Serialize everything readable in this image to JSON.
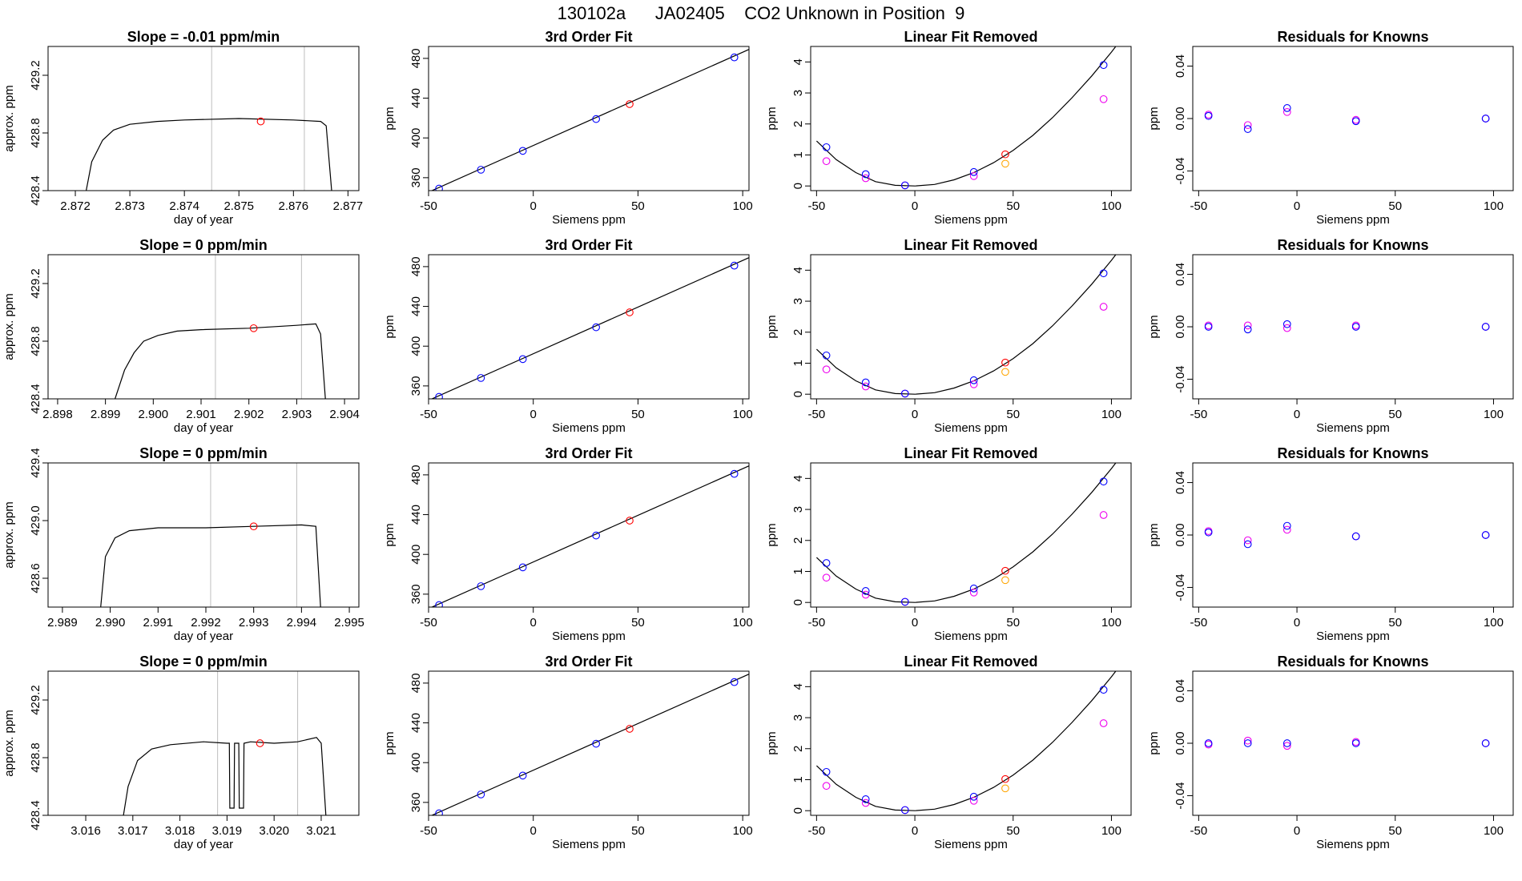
{
  "page": {
    "title": "130102a      JA02405    CO2 Unknown in Position  9"
  },
  "colors": {
    "frame": "#000000",
    "trace": "#000000",
    "vline": "#bebebe",
    "blue": "#0000ff",
    "red": "#ff0000",
    "purple": "#a020f0",
    "magenta": "#ee00ee",
    "orange": "#ffa500"
  },
  "chart_data": [
    {
      "type": "line",
      "row": 0,
      "col": 0,
      "title": "Slope =  -0.01  ppm/min",
      "xlabel": "day of year",
      "ylabel": "approx. ppm",
      "xlim": [
        2.8715,
        2.8772
      ],
      "ylim": [
        428.4,
        429.4
      ],
      "xticks": [
        "2.872",
        "2.873",
        "2.874",
        "2.875",
        "2.876",
        "2.877"
      ],
      "yticks": [
        "428.4",
        "428.8",
        "429.2"
      ],
      "trace": {
        "x": [
          2.8722,
          2.8723,
          2.8725,
          2.8727,
          2.873,
          2.8735,
          2.874,
          2.875,
          2.876,
          2.8765,
          2.8766,
          2.8767
        ],
        "y": [
          428.4,
          428.6,
          428.75,
          428.82,
          428.86,
          428.88,
          428.89,
          428.9,
          428.89,
          428.88,
          428.85,
          428.4
        ]
      },
      "vlines": [
        2.8745,
        2.8762
      ],
      "marker": {
        "x": 2.8754,
        "y": 428.88
      }
    },
    {
      "type": "scatter",
      "row": 0,
      "col": 1,
      "title": "3rd Order Fit",
      "xlabel": "Siemens ppm",
      "ylabel": "ppm",
      "xlim": [
        -50,
        103
      ],
      "ylim": [
        347,
        492
      ],
      "xticks": [
        "-50",
        "0",
        "50",
        "100"
      ],
      "yticks": [
        "360",
        "400",
        "440",
        "480"
      ],
      "fit_line": {
        "x": [
          -50,
          103
        ],
        "y": [
          345.5,
          489
        ]
      },
      "points_blue": {
        "x": [
          -45,
          -25,
          -5,
          30,
          96
        ],
        "y": [
          349,
          368,
          387,
          419,
          481
        ]
      },
      "points_red": {
        "x": [
          46
        ],
        "y": [
          434
        ]
      }
    },
    {
      "type": "scatter",
      "row": 0,
      "col": 2,
      "title": "Linear Fit Removed",
      "xlabel": "Siemens ppm",
      "ylabel": "ppm",
      "xlim": [
        -53,
        110
      ],
      "ylim": [
        -0.15,
        4.5
      ],
      "xticks": [
        "-50",
        "0",
        "50",
        "100"
      ],
      "yticks": [
        "0",
        "1",
        "2",
        "3",
        "4"
      ],
      "curve": {
        "x": [
          -50,
          -40,
          -30,
          -20,
          -10,
          0,
          10,
          20,
          30,
          40,
          50,
          60,
          70,
          80,
          90,
          100,
          104
        ],
        "y": [
          1.45,
          0.85,
          0.43,
          0.14,
          0.02,
          0.0,
          0.05,
          0.2,
          0.43,
          0.75,
          1.15,
          1.63,
          2.2,
          2.85,
          3.55,
          4.32,
          4.65
        ]
      },
      "points_blue": {
        "x": [
          -45,
          -25,
          -5,
          30,
          96
        ],
        "y": [
          1.25,
          0.38,
          0.02,
          0.45,
          3.9
        ]
      },
      "points_magenta": {
        "x": [
          -45,
          -25,
          -5,
          30,
          96
        ],
        "y": [
          0.8,
          0.25,
          0.02,
          0.32,
          2.8
        ]
      },
      "points_red": {
        "x": [
          46
        ],
        "y": [
          1.02
        ]
      },
      "points_orange": {
        "x": [
          46
        ],
        "y": [
          0.72
        ]
      }
    },
    {
      "type": "scatter",
      "row": 0,
      "col": 3,
      "title": "Residuals for Knowns",
      "xlabel": "Siemens ppm",
      "ylabel": "ppm",
      "xlim": [
        -53,
        110
      ],
      "ylim": [
        -0.055,
        0.055
      ],
      "xticks": [
        "-50",
        "0",
        "50",
        "100"
      ],
      "yticks": [
        "-0.04",
        "0.00",
        "0.04"
      ],
      "points_blue": {
        "x": [
          -45,
          -25,
          -5,
          30,
          96
        ],
        "y": [
          0.002,
          -0.008,
          0.008,
          -0.002,
          0.0
        ]
      },
      "points_magenta": {
        "x": [
          -45,
          -25,
          -5,
          30,
          96
        ],
        "y": [
          0.003,
          -0.005,
          0.005,
          -0.001,
          0.0
        ]
      }
    },
    {
      "type": "line",
      "row": 1,
      "col": 0,
      "title": "Slope =  0  ppm/min",
      "xlabel": "day of year",
      "ylabel": "approx. ppm",
      "xlim": [
        2.8978,
        2.9043
      ],
      "ylim": [
        428.4,
        429.4
      ],
      "xticks": [
        "2.898",
        "2.899",
        "2.900",
        "2.901",
        "2.902",
        "2.903",
        "2.904"
      ],
      "yticks": [
        "428.4",
        "428.8",
        "429.2"
      ],
      "trace": {
        "x": [
          2.8992,
          2.8994,
          2.8996,
          2.8998,
          2.9001,
          2.9005,
          2.901,
          2.902,
          2.903,
          2.9034,
          2.9035,
          2.9036
        ],
        "y": [
          428.4,
          428.6,
          428.72,
          428.8,
          428.84,
          428.87,
          428.88,
          428.89,
          428.91,
          428.92,
          428.85,
          428.4
        ]
      },
      "vlines": [
        2.9013,
        2.9031
      ],
      "marker": {
        "x": 2.9021,
        "y": 428.89
      }
    },
    {
      "type": "scatter",
      "row": 1,
      "col": 1,
      "title": "3rd Order Fit",
      "xlabel": "Siemens ppm",
      "ylabel": "ppm",
      "xlim": [
        -50,
        103
      ],
      "ylim": [
        347,
        492
      ],
      "xticks": [
        "-50",
        "0",
        "50",
        "100"
      ],
      "yticks": [
        "360",
        "400",
        "440",
        "480"
      ],
      "fit_line": {
        "x": [
          -50,
          103
        ],
        "y": [
          345.5,
          489
        ]
      },
      "points_blue": {
        "x": [
          -45,
          -25,
          -5,
          30,
          96
        ],
        "y": [
          349,
          368,
          387,
          419,
          481
        ]
      },
      "points_red": {
        "x": [
          46
        ],
        "y": [
          434
        ]
      }
    },
    {
      "type": "scatter",
      "row": 1,
      "col": 2,
      "title": "Linear Fit Removed",
      "xlabel": "Siemens ppm",
      "ylabel": "ppm",
      "xlim": [
        -53,
        110
      ],
      "ylim": [
        -0.15,
        4.5
      ],
      "xticks": [
        "-50",
        "0",
        "50",
        "100"
      ],
      "yticks": [
        "0",
        "1",
        "2",
        "3",
        "4"
      ],
      "curve": {
        "x": [
          -50,
          -40,
          -30,
          -20,
          -10,
          0,
          10,
          20,
          30,
          40,
          50,
          60,
          70,
          80,
          90,
          100,
          104
        ],
        "y": [
          1.45,
          0.85,
          0.43,
          0.14,
          0.02,
          0.0,
          0.05,
          0.2,
          0.43,
          0.75,
          1.15,
          1.63,
          2.2,
          2.85,
          3.55,
          4.32,
          4.65
        ]
      },
      "points_blue": {
        "x": [
          -45,
          -25,
          -5,
          30,
          96
        ],
        "y": [
          1.25,
          0.38,
          0.02,
          0.45,
          3.9
        ]
      },
      "points_magenta": {
        "x": [
          -45,
          -25,
          -5,
          30,
          96
        ],
        "y": [
          0.8,
          0.25,
          0.02,
          0.32,
          2.82
        ]
      },
      "points_red": {
        "x": [
          46
        ],
        "y": [
          1.02
        ]
      },
      "points_orange": {
        "x": [
          46
        ],
        "y": [
          0.72
        ]
      }
    },
    {
      "type": "scatter",
      "row": 1,
      "col": 3,
      "title": "Residuals for Knowns",
      "xlabel": "Siemens ppm",
      "ylabel": "ppm",
      "xlim": [
        -53,
        110
      ],
      "ylim": [
        -0.055,
        0.055
      ],
      "xticks": [
        "-50",
        "0",
        "50",
        "100"
      ],
      "yticks": [
        "-0.04",
        "0.00",
        "0.04"
      ],
      "points_blue": {
        "x": [
          -45,
          -25,
          -5,
          30,
          96
        ],
        "y": [
          0.0,
          -0.002,
          0.002,
          0.0,
          0.0
        ]
      },
      "points_magenta": {
        "x": [
          -45,
          -25,
          -5,
          30,
          96
        ],
        "y": [
          0.001,
          0.001,
          -0.001,
          0.001,
          0.0
        ]
      }
    },
    {
      "type": "line",
      "row": 2,
      "col": 0,
      "title": "Slope =  0  ppm/min",
      "xlabel": "day of year",
      "ylabel": "approx. ppm",
      "xlim": [
        2.9887,
        2.9952
      ],
      "ylim": [
        428.4,
        429.4
      ],
      "xticks": [
        "2.989",
        "2.990",
        "2.991",
        "2.992",
        "2.993",
        "2.994",
        "2.995"
      ],
      "yticks": [
        "428.6",
        "429.0",
        "429.4"
      ],
      "trace": {
        "x": [
          2.9898,
          2.9899,
          2.9901,
          2.9904,
          2.991,
          2.992,
          2.993,
          2.994,
          2.9943,
          2.9944
        ],
        "y": [
          428.4,
          428.75,
          428.88,
          428.93,
          428.95,
          428.95,
          428.96,
          428.97,
          428.96,
          428.4
        ]
      },
      "vlines": [
        2.9921,
        2.9939
      ],
      "marker": {
        "x": 2.993,
        "y": 428.96
      }
    },
    {
      "type": "scatter",
      "row": 2,
      "col": 1,
      "title": "3rd Order Fit",
      "xlabel": "Siemens ppm",
      "ylabel": "ppm",
      "xlim": [
        -50,
        103
      ],
      "ylim": [
        347,
        492
      ],
      "xticks": [
        "-50",
        "0",
        "50",
        "100"
      ],
      "yticks": [
        "360",
        "400",
        "440",
        "480"
      ],
      "fit_line": {
        "x": [
          -50,
          103
        ],
        "y": [
          345.5,
          489
        ]
      },
      "points_blue": {
        "x": [
          -45,
          -25,
          -5,
          30,
          96
        ],
        "y": [
          349,
          368,
          387,
          419,
          481
        ]
      },
      "points_red": {
        "x": [
          46
        ],
        "y": [
          434
        ]
      }
    },
    {
      "type": "scatter",
      "row": 2,
      "col": 2,
      "title": "Linear Fit Removed",
      "xlabel": "Siemens ppm",
      "ylabel": "ppm",
      "xlim": [
        -53,
        110
      ],
      "ylim": [
        -0.15,
        4.5
      ],
      "xticks": [
        "-50",
        "0",
        "50",
        "100"
      ],
      "yticks": [
        "0",
        "1",
        "2",
        "3",
        "4"
      ],
      "curve": {
        "x": [
          -50,
          -40,
          -30,
          -20,
          -10,
          0,
          10,
          20,
          30,
          40,
          50,
          60,
          70,
          80,
          90,
          100,
          104
        ],
        "y": [
          1.45,
          0.85,
          0.43,
          0.14,
          0.02,
          0.0,
          0.05,
          0.2,
          0.43,
          0.75,
          1.15,
          1.63,
          2.2,
          2.85,
          3.55,
          4.32,
          4.65
        ]
      },
      "points_blue": {
        "x": [
          -45,
          -25,
          -5,
          30,
          96
        ],
        "y": [
          1.27,
          0.37,
          0.02,
          0.45,
          3.9
        ]
      },
      "points_magenta": {
        "x": [
          -45,
          -25,
          -5,
          30,
          96
        ],
        "y": [
          0.8,
          0.25,
          0.02,
          0.32,
          2.82
        ]
      },
      "points_red": {
        "x": [
          46
        ],
        "y": [
          1.02
        ]
      },
      "points_orange": {
        "x": [
          46
        ],
        "y": [
          0.72
        ]
      }
    },
    {
      "type": "scatter",
      "row": 2,
      "col": 3,
      "title": "Residuals for Knowns",
      "xlabel": "Siemens ppm",
      "ylabel": "ppm",
      "xlim": [
        -53,
        110
      ],
      "ylim": [
        -0.055,
        0.055
      ],
      "xticks": [
        "-50",
        "0",
        "50",
        "100"
      ],
      "yticks": [
        "-0.04",
        "0.00",
        "0.04"
      ],
      "points_blue": {
        "x": [
          -45,
          -25,
          -5,
          30,
          96
        ],
        "y": [
          0.002,
          -0.007,
          0.007,
          -0.001,
          0.0
        ]
      },
      "points_magenta": {
        "x": [
          -45,
          -25,
          -5,
          30,
          96
        ],
        "y": [
          0.003,
          -0.004,
          0.004,
          -0.001,
          0.0
        ]
      }
    },
    {
      "type": "line",
      "row": 3,
      "col": 0,
      "title": "Slope =  0  ppm/min",
      "xlabel": "day of year",
      "ylabel": "approx. ppm",
      "xlim": [
        3.0152,
        3.0218
      ],
      "ylim": [
        428.4,
        429.4
      ],
      "xticks": [
        "3.016",
        "3.017",
        "3.018",
        "3.019",
        "3.020",
        "3.021"
      ],
      "yticks": [
        "428.4",
        "428.8",
        "429.2"
      ],
      "trace": {
        "x": [
          3.0168,
          3.0169,
          3.0171,
          3.0174,
          3.0178,
          3.0185,
          3.019,
          3.01905,
          3.01906,
          3.01915,
          3.01916,
          3.0192,
          3.01925,
          3.01926,
          3.01935,
          3.01936,
          3.0195,
          3.02,
          3.0205,
          3.0209,
          3.021,
          3.0211
        ],
        "y": [
          428.4,
          428.6,
          428.78,
          428.86,
          428.89,
          428.91,
          428.9,
          428.9,
          428.45,
          428.45,
          428.9,
          428.9,
          428.9,
          428.45,
          428.45,
          428.9,
          428.91,
          428.9,
          428.91,
          428.94,
          428.9,
          428.4
        ]
      },
      "vlines": [
        3.0188,
        3.0205
      ],
      "marker": {
        "x": 3.0197,
        "y": 428.9
      }
    },
    {
      "type": "scatter",
      "row": 3,
      "col": 1,
      "title": "3rd Order Fit",
      "xlabel": "Siemens ppm",
      "ylabel": "ppm",
      "xlim": [
        -50,
        103
      ],
      "ylim": [
        347,
        492
      ],
      "xticks": [
        "-50",
        "0",
        "50",
        "100"
      ],
      "yticks": [
        "360",
        "400",
        "440",
        "480"
      ],
      "fit_line": {
        "x": [
          -50,
          103
        ],
        "y": [
          345.5,
          489
        ]
      },
      "points_blue": {
        "x": [
          -45,
          -25,
          -5,
          30,
          96
        ],
        "y": [
          349,
          368,
          387,
          419,
          481
        ]
      },
      "points_red": {
        "x": [
          46
        ],
        "y": [
          434
        ]
      }
    },
    {
      "type": "scatter",
      "row": 3,
      "col": 2,
      "title": "Linear Fit Removed",
      "xlabel": "Siemens ppm",
      "ylabel": "ppm",
      "xlim": [
        -53,
        110
      ],
      "ylim": [
        -0.15,
        4.5
      ],
      "xticks": [
        "-50",
        "0",
        "50",
        "100"
      ],
      "yticks": [
        "0",
        "1",
        "2",
        "3",
        "4"
      ],
      "curve": {
        "x": [
          -50,
          -40,
          -30,
          -20,
          -10,
          0,
          10,
          20,
          30,
          40,
          50,
          60,
          70,
          80,
          90,
          100,
          104
        ],
        "y": [
          1.45,
          0.85,
          0.43,
          0.14,
          0.02,
          0.0,
          0.05,
          0.2,
          0.43,
          0.75,
          1.15,
          1.63,
          2.2,
          2.85,
          3.55,
          4.32,
          4.65
        ]
      },
      "points_blue": {
        "x": [
          -45,
          -25,
          -5,
          30,
          96
        ],
        "y": [
          1.25,
          0.37,
          0.02,
          0.45,
          3.9
        ]
      },
      "points_magenta": {
        "x": [
          -45,
          -25,
          -5,
          30,
          96
        ],
        "y": [
          0.8,
          0.25,
          0.02,
          0.32,
          2.82
        ]
      },
      "points_red": {
        "x": [
          46
        ],
        "y": [
          1.02
        ]
      },
      "points_orange": {
        "x": [
          46
        ],
        "y": [
          0.72
        ]
      }
    },
    {
      "type": "scatter",
      "row": 3,
      "col": 3,
      "title": "Residuals for Knowns",
      "xlabel": "Siemens ppm",
      "ylabel": "ppm",
      "xlim": [
        -53,
        110
      ],
      "ylim": [
        -0.055,
        0.055
      ],
      "xticks": [
        "-50",
        "0",
        "50",
        "100"
      ],
      "yticks": [
        "-0.04",
        "0.00",
        "0.04"
      ],
      "points_blue": {
        "x": [
          -45,
          -25,
          -5,
          30,
          96
        ],
        "y": [
          0.0,
          0.0,
          0.0,
          0.0,
          0.0
        ]
      },
      "points_magenta": {
        "x": [
          -45,
          -25,
          -5,
          30,
          96
        ],
        "y": [
          -0.001,
          0.002,
          -0.002,
          0.001,
          0.0
        ]
      }
    }
  ]
}
